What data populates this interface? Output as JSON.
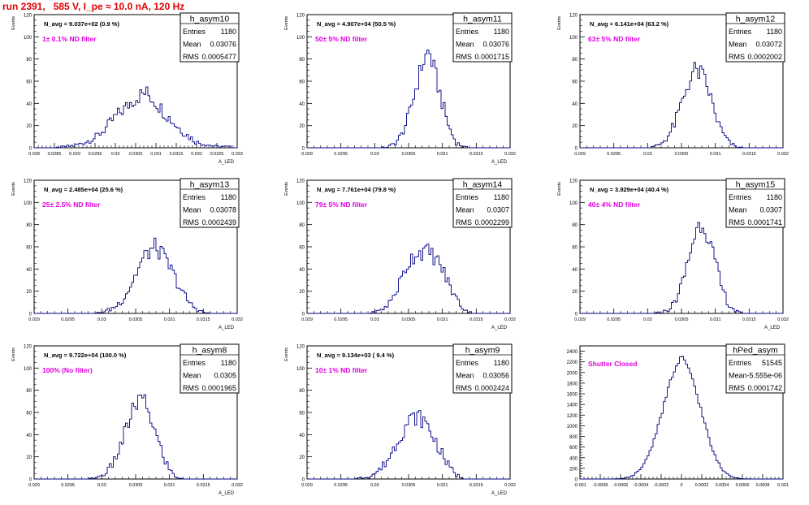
{
  "run_title": "run 2391,   585 V, I_pe ≈ 10.0 nA, 120 Hz",
  "stats_labels": {
    "entries": "Entries",
    "mean": "Mean",
    "rms": "RMS"
  },
  "chart_data": [
    {
      "type": "histogram",
      "name": "h_asym10",
      "navg": "N_avg = 9.037e+02 (0.9 %)",
      "annotation": "1± 0.1% ND filter",
      "entries": "1180",
      "mean": "0.03076",
      "rms": "0.0005477",
      "xlabel": "A_LED",
      "ylabel": "Events",
      "xlim": [
        0.028,
        0.033
      ],
      "ylim": [
        0,
        120
      ],
      "yticks": [
        0,
        20,
        40,
        60,
        80,
        100,
        120
      ],
      "xticks": [
        0.028,
        0.0285,
        0.029,
        0.0295,
        0.03,
        0.0305,
        0.031,
        0.0315,
        0.032,
        0.0325,
        0.033
      ],
      "xtick_labels": [
        "0.028",
        "0.0285",
        "0.029",
        "0.0295",
        "0.03",
        "0.0305",
        "0.031",
        "0.0315",
        "0.032",
        "0.0325",
        "0.033"
      ],
      "peak": 54,
      "x": [
        0.02876,
        0.029,
        0.02925,
        0.0295,
        0.02975,
        0.03,
        0.03025,
        0.0305,
        0.03075,
        0.031,
        0.03125,
        0.0315,
        0.03175,
        0.032,
        0.03225,
        0.0325,
        0.03275
      ],
      "values": [
        1,
        2,
        5,
        9,
        17,
        28,
        36,
        45,
        50,
        41,
        30,
        20,
        12,
        5,
        3,
        1,
        1
      ]
    },
    {
      "type": "histogram",
      "name": "h_asym11",
      "navg": "N_avg = 4.907e+04 (50.5 %)",
      "annotation": "50± 5% ND filter",
      "entries": "1180",
      "mean": "0.03076",
      "rms": "0.0001715",
      "xlabel": "A_LED",
      "ylabel": "Events",
      "xlim": [
        0.029,
        0.032
      ],
      "ylim": [
        0,
        120
      ],
      "yticks": [
        0,
        20,
        40,
        60,
        80,
        100,
        120
      ],
      "xticks": [
        0.029,
        0.0295,
        0.03,
        0.0305,
        0.031,
        0.0315,
        0.032
      ],
      "xtick_labels": [
        "0.029",
        "0.0295",
        "0.03",
        "0.0305",
        "0.031",
        "0.0315",
        "0.032"
      ],
      "peak": 93,
      "x": [
        0.0302,
        0.0303,
        0.0304,
        0.0305,
        0.0306,
        0.0307,
        0.0308,
        0.0309,
        0.031,
        0.0311,
        0.0312,
        0.0313
      ],
      "values": [
        1,
        4,
        12,
        28,
        52,
        75,
        88,
        65,
        40,
        18,
        5,
        1
      ]
    },
    {
      "type": "histogram",
      "name": "h_asym12",
      "navg": "N_avg = 6.141e+04 (63.2 %)",
      "annotation": "63± 5% ND filter",
      "entries": "1180",
      "mean": "0.03072",
      "rms": "0.0002002",
      "xlabel": "",
      "ylabel": "Events",
      "xlim": [
        0.029,
        0.032
      ],
      "ylim": [
        0,
        120
      ],
      "yticks": [
        0,
        20,
        40,
        60,
        80,
        100,
        120
      ],
      "xticks": [
        0.029,
        0.0295,
        0.03,
        0.0305,
        0.031,
        0.0315,
        0.032
      ],
      "xtick_labels": [
        "0.029",
        "0.0295",
        "0.03",
        "0.0305",
        "0.031",
        "0.0315",
        "0.032"
      ],
      "peak": 84,
      "x": [
        0.0301,
        0.0302,
        0.0303,
        0.0304,
        0.0305,
        0.0306,
        0.0307,
        0.0308,
        0.0309,
        0.031,
        0.0311,
        0.0312,
        0.0313
      ],
      "values": [
        1,
        4,
        10,
        22,
        40,
        58,
        70,
        66,
        52,
        30,
        14,
        5,
        1
      ]
    },
    {
      "type": "histogram",
      "name": "h_asym13",
      "navg": "N_avg = 2.485e+04 (25.6 %)",
      "annotation": "25± 2.5% ND filter",
      "entries": "1180",
      "mean": "0.03078",
      "rms": "0.0002439",
      "xlabel": "A_LED",
      "ylabel": "Events",
      "xlim": [
        0.029,
        0.032
      ],
      "ylim": [
        0,
        120
      ],
      "yticks": [
        0,
        20,
        40,
        60,
        80,
        100,
        120
      ],
      "xticks": [
        0.029,
        0.0295,
        0.03,
        0.0305,
        0.031,
        0.0315,
        0.032
      ],
      "xtick_labels": [
        "0.029",
        "0.0295",
        "0.03",
        "0.0305",
        "0.031",
        "0.0315",
        "0.032"
      ],
      "peak": 66,
      "x": [
        0.03,
        0.0301,
        0.0302,
        0.0303,
        0.0304,
        0.0305,
        0.0306,
        0.0307,
        0.0308,
        0.0309,
        0.031,
        0.0311,
        0.0312,
        0.0313,
        0.0314,
        0.0315
      ],
      "values": [
        1,
        3,
        6,
        12,
        22,
        35,
        48,
        56,
        60,
        52,
        42,
        30,
        18,
        9,
        4,
        1
      ]
    },
    {
      "type": "histogram",
      "name": "h_asym14",
      "navg": "N_avg = 7.761e+04 (79.8 %)",
      "annotation": "79± 5% ND filter",
      "entries": "1180",
      "mean": "0.0307",
      "rms": "0.0002299",
      "xlabel": "A_LED",
      "ylabel": "Events",
      "xlim": [
        0.029,
        0.032
      ],
      "ylim": [
        0,
        120
      ],
      "yticks": [
        0,
        20,
        40,
        60,
        80,
        100,
        120
      ],
      "xticks": [
        0.029,
        0.0295,
        0.03,
        0.0305,
        0.031,
        0.0315,
        0.032
      ],
      "xtick_labels": [
        "0.029",
        "0.0295",
        "0.03",
        "0.0305",
        "0.031",
        "0.0315",
        "0.032"
      ],
      "peak": 58,
      "x": [
        0.03,
        0.0301,
        0.0302,
        0.0303,
        0.0304,
        0.0305,
        0.0306,
        0.0307,
        0.0308,
        0.0309,
        0.031,
        0.0311,
        0.0312,
        0.0313,
        0.0314
      ],
      "values": [
        1,
        3,
        8,
        18,
        32,
        46,
        54,
        56,
        55,
        50,
        40,
        26,
        14,
        5,
        1
      ]
    },
    {
      "type": "histogram",
      "name": "h_asym15",
      "navg": "N_avg = 3.929e+04 (40.4 %)",
      "annotation": "40± 4% ND filter",
      "entries": "1180",
      "mean": "0.0307",
      "rms": "0.0001741",
      "xlabel": "A_LED",
      "ylabel": "Events",
      "xlim": [
        0.029,
        0.032
      ],
      "ylim": [
        0,
        120
      ],
      "yticks": [
        0,
        20,
        40,
        60,
        80,
        100,
        120
      ],
      "xticks": [
        0.029,
        0.0295,
        0.03,
        0.0305,
        0.031,
        0.0315,
        0.032
      ],
      "xtick_labels": [
        "0.029",
        "0.0295",
        "0.03",
        "0.0305",
        "0.031",
        "0.0315",
        "0.032"
      ],
      "peak": 88,
      "x": [
        0.0302,
        0.0303,
        0.0304,
        0.0305,
        0.0306,
        0.0307,
        0.0308,
        0.0309,
        0.031,
        0.0311,
        0.0312,
        0.0313
      ],
      "values": [
        1,
        3,
        10,
        25,
        48,
        72,
        84,
        70,
        45,
        22,
        8,
        2
      ]
    },
    {
      "type": "histogram",
      "name": "h_asym8",
      "navg": "N_avg = 9.722e+04 (100.0 %)",
      "annotation": "100% (No filter)",
      "entries": "1180",
      "mean": "0.0305",
      "rms": "0.0001965",
      "xlabel": "A_LED",
      "ylabel": "Events",
      "xlim": [
        0.029,
        0.032
      ],
      "ylim": [
        0,
        120
      ],
      "yticks": [
        0,
        20,
        40,
        60,
        80,
        100,
        120
      ],
      "xticks": [
        0.029,
        0.0295,
        0.03,
        0.0305,
        0.031,
        0.0315,
        0.032
      ],
      "xtick_labels": [
        "0.029",
        "0.0295",
        "0.03",
        "0.0305",
        "0.031",
        "0.0315",
        "0.032"
      ],
      "peak": 77,
      "x": [
        0.0299,
        0.03,
        0.0301,
        0.0302,
        0.0303,
        0.0304,
        0.0305,
        0.0306,
        0.0307,
        0.0308,
        0.0309,
        0.031,
        0.0311
      ],
      "values": [
        1,
        3,
        8,
        18,
        34,
        52,
        68,
        72,
        60,
        40,
        22,
        8,
        2
      ]
    },
    {
      "type": "histogram",
      "name": "h_asym9",
      "navg": "N_avg = 9.134e+03 ( 9.4 %)",
      "annotation": "10± 1% ND filter",
      "entries": "1180",
      "mean": "0.03056",
      "rms": "0.0002424",
      "xlabel": "A_LED",
      "ylabel": "Events",
      "xlim": [
        0.029,
        0.032
      ],
      "ylim": [
        0,
        120
      ],
      "yticks": [
        0,
        20,
        40,
        60,
        80,
        100,
        120
      ],
      "xticks": [
        0.029,
        0.0295,
        0.03,
        0.0305,
        0.031,
        0.0315,
        0.032
      ],
      "xtick_labels": [
        "0.029",
        "0.0295",
        "0.03",
        "0.0305",
        "0.031",
        "0.0315",
        "0.032"
      ],
      "peak": 61,
      "x": [
        0.0298,
        0.0299,
        0.03,
        0.0301,
        0.0302,
        0.0303,
        0.0304,
        0.0305,
        0.0306,
        0.0307,
        0.0308,
        0.0309,
        0.031,
        0.0311,
        0.0312,
        0.0313
      ],
      "values": [
        1,
        2,
        5,
        10,
        18,
        30,
        42,
        52,
        56,
        54,
        46,
        34,
        22,
        11,
        4,
        1
      ]
    },
    {
      "type": "histogram",
      "name": "hPed_asym",
      "navg": "",
      "annotation": "Shutter Closed",
      "entries": "51545",
      "mean": "-5.555e-06",
      "rms": "0.0001742",
      "xlabel": "",
      "ylabel": "",
      "xlim": [
        -0.001,
        0.001
      ],
      "ylim": [
        0,
        2500
      ],
      "yticks": [
        0,
        200,
        400,
        600,
        800,
        1000,
        1200,
        1400,
        1600,
        1800,
        2000,
        2200,
        2400
      ],
      "xticks": [
        -0.001,
        -0.0008,
        -0.0006,
        -0.0004,
        -0.0002,
        0,
        0.0002,
        0.0004,
        0.0006,
        0.0008,
        0.001
      ],
      "xtick_labels": [
        "-0.001",
        "-0.0008",
        "-0.0006",
        "-0.0004",
        "-0.0002",
        "0",
        "0.0002",
        "0.0004",
        "0.0006",
        "0.0008",
        "0.001"
      ],
      "peak": 2380,
      "x": [
        -0.0006,
        -0.0005,
        -0.0004,
        -0.0003,
        -0.0002,
        -0.0001,
        0.0,
        0.0001,
        0.0002,
        0.0003,
        0.0004,
        0.0005,
        0.0006
      ],
      "values": [
        5,
        40,
        180,
        560,
        1200,
        1900,
        2300,
        1950,
        1250,
        560,
        170,
        40,
        5
      ]
    }
  ]
}
